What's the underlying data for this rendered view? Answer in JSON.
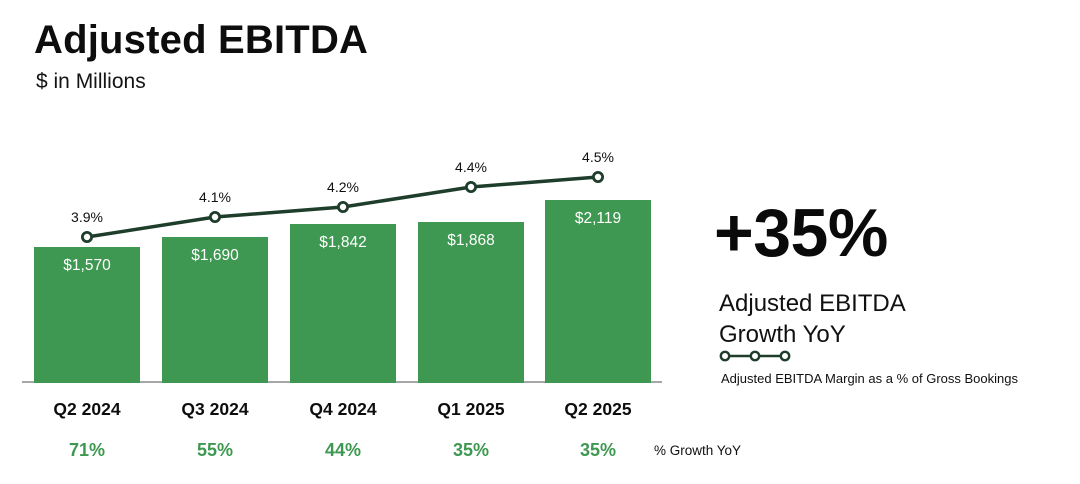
{
  "header": {
    "title": "Adjusted EBITDA",
    "subtitle": "$ in Millions"
  },
  "chart_data": {
    "type": "bar",
    "categories": [
      "Q2 2024",
      "Q3 2024",
      "Q4 2024",
      "Q1 2025",
      "Q2 2025"
    ],
    "series": [
      {
        "name": "Adjusted EBITDA ($ in Millions)",
        "type": "bar",
        "values": [
          1570,
          1690,
          1842,
          1868,
          2119
        ],
        "labels": [
          "$1,570",
          "$1,690",
          "$1,842",
          "$1,868",
          "$2,119"
        ]
      },
      {
        "name": "Adjusted EBITDA Margin as a % of Gross Bookings",
        "type": "line",
        "values": [
          3.9,
          4.1,
          4.2,
          4.4,
          4.5
        ],
        "labels": [
          "3.9%",
          "4.1%",
          "4.2%",
          "4.4%",
          "4.5%"
        ]
      }
    ],
    "growth_row": {
      "values": [
        "71%",
        "55%",
        "44%",
        "35%",
        "35%"
      ],
      "caption": "% Growth YoY"
    },
    "ylim": [
      0,
      2119
    ],
    "grid": false,
    "legend_position": "right",
    "colors": {
      "bar": "#3E9851",
      "line": "#1F3D2B",
      "growth": "#3E9851",
      "axis": "#A9A6A6",
      "bar_label": "#FFFFFF",
      "text": "#101010"
    }
  },
  "highlight": {
    "value": "+35%",
    "line1": "Adjusted EBITDA",
    "line2": "Growth YoY",
    "legend_caption": "Adjusted EBITDA Margin as a % of Gross Bookings"
  }
}
